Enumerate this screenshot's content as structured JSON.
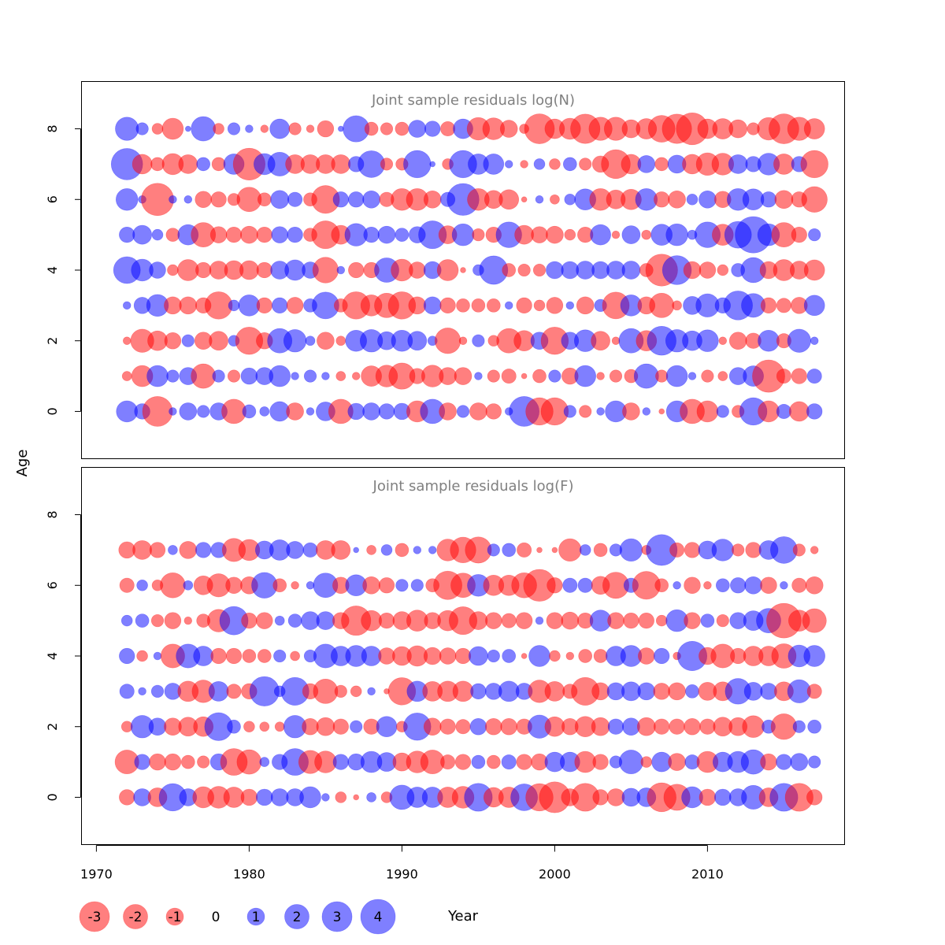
{
  "colors": {
    "negative": "#ff0000",
    "positive": "#0000ff",
    "bubble_opacity": 0.5,
    "panel_title": "#808080",
    "frame": "#000000"
  },
  "chart_data": [
    {
      "type": "bubble",
      "title": "Joint sample residuals log(N)",
      "xlabel": "Year",
      "ylabel": "Age",
      "xlim": [
        1969,
        2019
      ],
      "ylim": [
        -1.35,
        9.35
      ],
      "x_ticks": [
        1970,
        1980,
        1990,
        2000,
        2010
      ],
      "y_ticks": [
        0,
        2,
        4,
        6,
        8
      ],
      "years": [
        1972,
        1973,
        1974,
        1975,
        1976,
        1977,
        1978,
        1979,
        1980,
        1981,
        1982,
        1983,
        1984,
        1985,
        1986,
        1987,
        1988,
        1989,
        1990,
        1991,
        1992,
        1993,
        1994,
        1995,
        1996,
        1997,
        1998,
        1999,
        2000,
        2001,
        2002,
        2003,
        2004,
        2005,
        2006,
        2007,
        2008,
        2009,
        2010,
        2011,
        2012,
        2013,
        2014,
        2015,
        2016,
        2017
      ],
      "ages": [
        0,
        1,
        2,
        3,
        4,
        5,
        6,
        7,
        8
      ],
      "residuals": {
        "0": [
          1.5,
          0.8,
          -3,
          0.2,
          1,
          0.5,
          1,
          -2,
          0.6,
          0.3,
          1.3,
          -1,
          0.2,
          1.2,
          -2,
          0.9,
          1,
          0.8,
          0.9,
          -1.5,
          2,
          -1,
          0.5,
          -1,
          -0.8,
          0.2,
          3,
          -2.5,
          -2.5,
          0.5,
          -0.5,
          0.2,
          1.5,
          -1,
          0.2,
          -0.1,
          1.5,
          -2,
          -1.5,
          0.5,
          -0.5,
          2.5,
          -1.5,
          0.7,
          -1.3,
          0.8
        ],
        "1": [
          -0.3,
          -1.5,
          1.5,
          0.5,
          1,
          -2,
          0.5,
          -0.5,
          0.9,
          1,
          1.5,
          0.2,
          0.5,
          0.2,
          -0.3,
          -0.2,
          -1.4,
          -1.6,
          -2.3,
          -0.8,
          -1.6,
          -1,
          -1,
          0.2,
          -0.5,
          -0.7,
          -0.1,
          -0.6,
          0.5,
          -0.9,
          1.5,
          -0.2,
          -0.5,
          -0.6,
          2,
          -0.5,
          1.5,
          0.2,
          -0.5,
          -0.3,
          1,
          1.4,
          -3.5,
          -0.7,
          -0.8,
          0.7
        ],
        "2": [
          -0.2,
          -1.8,
          -1.3,
          -0.9,
          0.5,
          -1,
          -1.2,
          0.4,
          -2.5,
          -0.9,
          2,
          1.7,
          0.3,
          -1,
          -0.3,
          1.5,
          1.7,
          1.1,
          1.5,
          1.2,
          0.3,
          -2.2,
          -0.2,
          0.5,
          -0.4,
          -2,
          -1.4,
          1,
          -2.5,
          1,
          1.6,
          -1.2,
          -0.2,
          2,
          -1.4,
          2.8,
          1.7,
          1.3,
          1.6,
          -0.2,
          -1,
          -0.8,
          1.5,
          -0.7,
          1.8,
          0.2
        ],
        "3": [
          0.2,
          0.9,
          1.6,
          -1,
          -1,
          -0.8,
          -2.5,
          0.4,
          1.5,
          -0.8,
          0.8,
          -0.9,
          0.6,
          2.4,
          -0.6,
          -2.5,
          -1.5,
          -2,
          -2.5,
          -1,
          1,
          -0.8,
          -0.6,
          -0.6,
          -0.6,
          0.2,
          -0.8,
          -0.4,
          -0.9,
          0.2,
          -1,
          0.5,
          -2.4,
          1.5,
          -1,
          -2,
          -0.3,
          1.1,
          1.8,
          0.8,
          2.8,
          1.9,
          -0.8,
          -0.7,
          -0.9,
          1.4
        ],
        "4": [
          2.4,
          1.6,
          0.9,
          -0.4,
          -1.5,
          -0.8,
          -1.1,
          -1.2,
          -1.2,
          -0.8,
          1.1,
          1.4,
          0.9,
          -2.2,
          0.2,
          -0.8,
          -0.8,
          2,
          -1.6,
          -0.9,
          1,
          -1.5,
          -0.1,
          0.4,
          2.7,
          -0.6,
          -0.5,
          -0.5,
          1,
          1,
          1.1,
          1,
          1.1,
          1.1,
          -0.6,
          -3.4,
          2.8,
          -1,
          -0.9,
          -0.4,
          0.6,
          2.1,
          -1,
          -1.5,
          -1.1,
          -1.4
        ],
        "5": [
          0.8,
          1.2,
          0.4,
          -0.6,
          1.4,
          -2,
          -0.9,
          -0.8,
          -1,
          -0.8,
          0.9,
          0.8,
          -0.6,
          -2.6,
          -1.2,
          1.7,
          0.8,
          1,
          0.6,
          0.9,
          2.6,
          -1.1,
          1.6,
          -0.5,
          -0.8,
          2.2,
          -1.2,
          -0.9,
          -1,
          -0.4,
          -0.8,
          1.4,
          -0.2,
          1.1,
          -0.3,
          1.5,
          1.6,
          0.3,
          2.2,
          -1.5,
          2.4,
          4.4,
          1.6,
          -2,
          -0.8,
          0.5
        ],
        "6": [
          1.6,
          0.2,
          -3.5,
          0.2,
          0.2,
          -0.9,
          -0.8,
          -0.5,
          -2,
          -0.6,
          1.1,
          0.7,
          -0.6,
          -2.6,
          0.8,
          0.8,
          1,
          -0.7,
          -1.6,
          -1.6,
          -1,
          0.7,
          3.4,
          -1.6,
          -1.1,
          -1.3,
          -0.1,
          0.2,
          -0.3,
          0.4,
          1.5,
          -1.6,
          -1.2,
          -1.4,
          1.6,
          -0.8,
          -1,
          0.4,
          1,
          -0.9,
          1.6,
          1.5,
          0.8,
          -1.1,
          -0.8,
          -2.2
        ],
        "7": [
          3.3,
          -1.3,
          -0.6,
          -1.5,
          -1.2,
          0.6,
          -0.6,
          1.4,
          -3.4,
          1.5,
          1.9,
          -1.2,
          -1.2,
          -1.2,
          -1.2,
          0.8,
          2.4,
          -0.5,
          -0.5,
          2.5,
          0.1,
          -0.4,
          2.5,
          1.4,
          1.4,
          0.2,
          -0.2,
          0.4,
          -0.4,
          0.6,
          -0.5,
          -0.9,
          -2.8,
          -1.3,
          1,
          -0.6,
          1.1,
          -1.3,
          -1.7,
          -1.6,
          1.2,
          0.8,
          1.6,
          -1.4,
          0.8,
          -2.5
        ],
        "8": [
          1.8,
          0.5,
          -0.4,
          -1.5,
          0.1,
          2,
          -0.4,
          0.5,
          0.2,
          -0.2,
          1.3,
          -0.5,
          -0.2,
          -0.9,
          0.1,
          2.3,
          -0.6,
          -0.5,
          -0.6,
          1,
          0.8,
          -0.7,
          1.3,
          -1.7,
          -1.6,
          -1,
          -0.3,
          -3,
          -1.3,
          -1.5,
          -2.9,
          -1.8,
          -1.8,
          -1.1,
          -1.4,
          -2.4,
          -2.9,
          -3.4,
          -1.3,
          -1.4,
          -1.1,
          -0.5,
          -1.7,
          -3,
          -1.8,
          -1.4
        ]
      }
    },
    {
      "type": "bubble",
      "title": "Joint sample residuals log(F)",
      "xlabel": "Year",
      "ylabel": "Age",
      "xlim": [
        1969,
        2019
      ],
      "ylim": [
        -1.35,
        9.35
      ],
      "x_ticks": [
        1970,
        1980,
        1990,
        2000,
        2010
      ],
      "y_ticks": [
        0,
        2,
        4,
        6,
        8
      ],
      "years": [
        1972,
        1973,
        1974,
        1975,
        1976,
        1977,
        1978,
        1979,
        1980,
        1981,
        1982,
        1983,
        1984,
        1985,
        1986,
        1987,
        1988,
        1989,
        1990,
        1991,
        1992,
        1993,
        1994,
        1995,
        1996,
        1997,
        1998,
        1999,
        2000,
        2001,
        2002,
        2003,
        2004,
        2005,
        2006,
        2007,
        2008,
        2009,
        2010,
        2011,
        2012,
        2013,
        2014,
        2015,
        2016,
        2017
      ],
      "ages": [
        0,
        1,
        2,
        3,
        4,
        5,
        6,
        7
      ],
      "residuals": {
        "0": [
          -0.8,
          1,
          -1.2,
          2.5,
          1,
          -1.5,
          -1.6,
          -1.4,
          -0.9,
          0.9,
          1,
          1,
          1.5,
          0.2,
          -0.4,
          -0.1,
          0.3,
          -0.4,
          2,
          1.4,
          1.4,
          -1.4,
          -1.6,
          2.6,
          -1.3,
          -1.4,
          2.4,
          -2.5,
          -3.2,
          -1,
          -2.6,
          -0.8,
          -1,
          1.1,
          1.2,
          -2.8,
          -2.3,
          1.5,
          -0.9,
          0.9,
          1,
          1.9,
          -1.2,
          2.6,
          -2.6,
          -0.8
        ],
        "1": [
          -1.9,
          0.8,
          -0.9,
          -0.9,
          -0.6,
          -0.5,
          0.9,
          -2.4,
          -2,
          0.3,
          0.8,
          2.4,
          -1.8,
          -1.6,
          0.8,
          0.9,
          1.5,
          1.2,
          -1.1,
          -1.6,
          -1.9,
          -0.7,
          -0.8,
          0.6,
          -0.6,
          0.7,
          -0.8,
          -0.9,
          1.3,
          1.3,
          -1.5,
          -0.8,
          0.5,
          1.9,
          -0.4,
          1.3,
          -1,
          0.7,
          -1.5,
          1.3,
          1.5,
          2,
          -0.9,
          0.8,
          1,
          0.5
        ],
        "2": [
          -0.4,
          1.7,
          1,
          -1,
          -1.2,
          -1.3,
          2.6,
          0.6,
          -0.4,
          -0.3,
          -0.3,
          1.7,
          -0.9,
          -1.1,
          -0.8,
          0.5,
          -0.8,
          1.4,
          -0.4,
          2.5,
          -1,
          -0.8,
          -0.7,
          0.9,
          -0.9,
          -0.9,
          -0.8,
          1.8,
          -1.3,
          -0.9,
          -1.4,
          -1.1,
          0.8,
          1,
          -1.1,
          -0.8,
          -0.8,
          -0.9,
          -0.8,
          -1.2,
          -1.1,
          -1.6,
          0.6,
          -2.2,
          0.5,
          0.6
        ],
        "3": [
          0.7,
          0.2,
          0.5,
          0.9,
          -1.4,
          -1.7,
          1.3,
          -0.7,
          -0.8,
          2.9,
          0.4,
          2.6,
          -0.8,
          -2,
          -0.5,
          -0.4,
          0.2,
          -0.1,
          -2.5,
          1.4,
          -1.3,
          -1.4,
          -1.4,
          0.8,
          0.9,
          1.4,
          0.9,
          -1.7,
          -1.3,
          -0.7,
          -2.6,
          -1,
          1,
          1.2,
          1,
          -0.9,
          -1,
          0.6,
          -1.1,
          -1.2,
          2.2,
          1.1,
          0.9,
          -1.2,
          1.8,
          -0.7
        ],
        "4": [
          0.8,
          -0.4,
          0.2,
          -1.9,
          1.9,
          1.3,
          -0.8,
          -0.8,
          -0.6,
          -0.6,
          0.5,
          -0.3,
          0.5,
          1.9,
          1.3,
          1.5,
          1.3,
          -0.9,
          -1.2,
          -1.4,
          -1,
          -0.9,
          -0.8,
          1.2,
          0.5,
          0.6,
          -0.1,
          1.5,
          -0.4,
          -0.2,
          -0.6,
          -0.6,
          1.3,
          1.5,
          -0.9,
          0.8,
          -0.2,
          2.9,
          -1,
          -1.9,
          -0.8,
          -1.3,
          -1.3,
          -2,
          1.6,
          1.5
        ],
        "5": [
          0.4,
          0.6,
          -0.5,
          -0.9,
          -0.2,
          -0.6,
          -1.7,
          2.7,
          -0.8,
          -0.9,
          0.3,
          0.6,
          1.1,
          1.1,
          -0.9,
          -2.9,
          -1.4,
          -0.8,
          -1.1,
          -1.5,
          -0.9,
          -1.4,
          -2.6,
          -1.1,
          -0.9,
          -0.7,
          -0.9,
          0.2,
          -0.9,
          -1,
          -0.8,
          1.5,
          -0.9,
          -0.8,
          -0.8,
          -0.4,
          1.6,
          -0.9,
          0.6,
          -0.5,
          0.9,
          1.3,
          2,
          -4,
          -1.5,
          -1.9
        ],
        "6": [
          -0.7,
          0.4,
          -0.4,
          -2.1,
          0.3,
          -1.2,
          -1.8,
          -0.9,
          -1,
          2.2,
          -0.6,
          -0.2,
          0.2,
          2,
          -0.9,
          1.5,
          -1,
          -0.8,
          0.5,
          0.5,
          -0.6,
          -2.7,
          -2,
          1.6,
          -1.4,
          -1.4,
          -2.1,
          -3.4,
          -0.8,
          0.7,
          0.7,
          -1.1,
          -2.3,
          0.7,
          -2.6,
          -0.6,
          0.2,
          -0.9,
          -0.2,
          0.6,
          0.8,
          1,
          -0.9,
          0.2,
          -0.7,
          -1
        ],
        "7": [
          -0.9,
          -1.2,
          -0.8,
          0.3,
          -1,
          0.8,
          0.8,
          -1.8,
          -1.5,
          1.1,
          1.4,
          1,
          0.7,
          -1.2,
          -1.2,
          0.1,
          -0.3,
          0.4,
          -0.6,
          0.2,
          0.2,
          -1.6,
          -2.2,
          -2.3,
          0.5,
          0.6,
          -0.7,
          -0.1,
          -0.1,
          -1.7,
          0.4,
          -0.6,
          0.5,
          1.7,
          -0.3,
          3.2,
          -0.7,
          -0.8,
          1.1,
          1.6,
          -0.5,
          -0.8,
          1.2,
          2.4,
          -0.5,
          -0.2
        ]
      }
    }
  ],
  "legend": {
    "items": [
      {
        "label": "-3",
        "value": -3
      },
      {
        "label": "-2",
        "value": -2
      },
      {
        "label": "-1",
        "value": -1
      },
      {
        "label": "0",
        "value": 0
      },
      {
        "label": "1",
        "value": 1
      },
      {
        "label": "2",
        "value": 2
      },
      {
        "label": "3",
        "value": 3
      },
      {
        "label": "4",
        "value": 4
      }
    ]
  }
}
